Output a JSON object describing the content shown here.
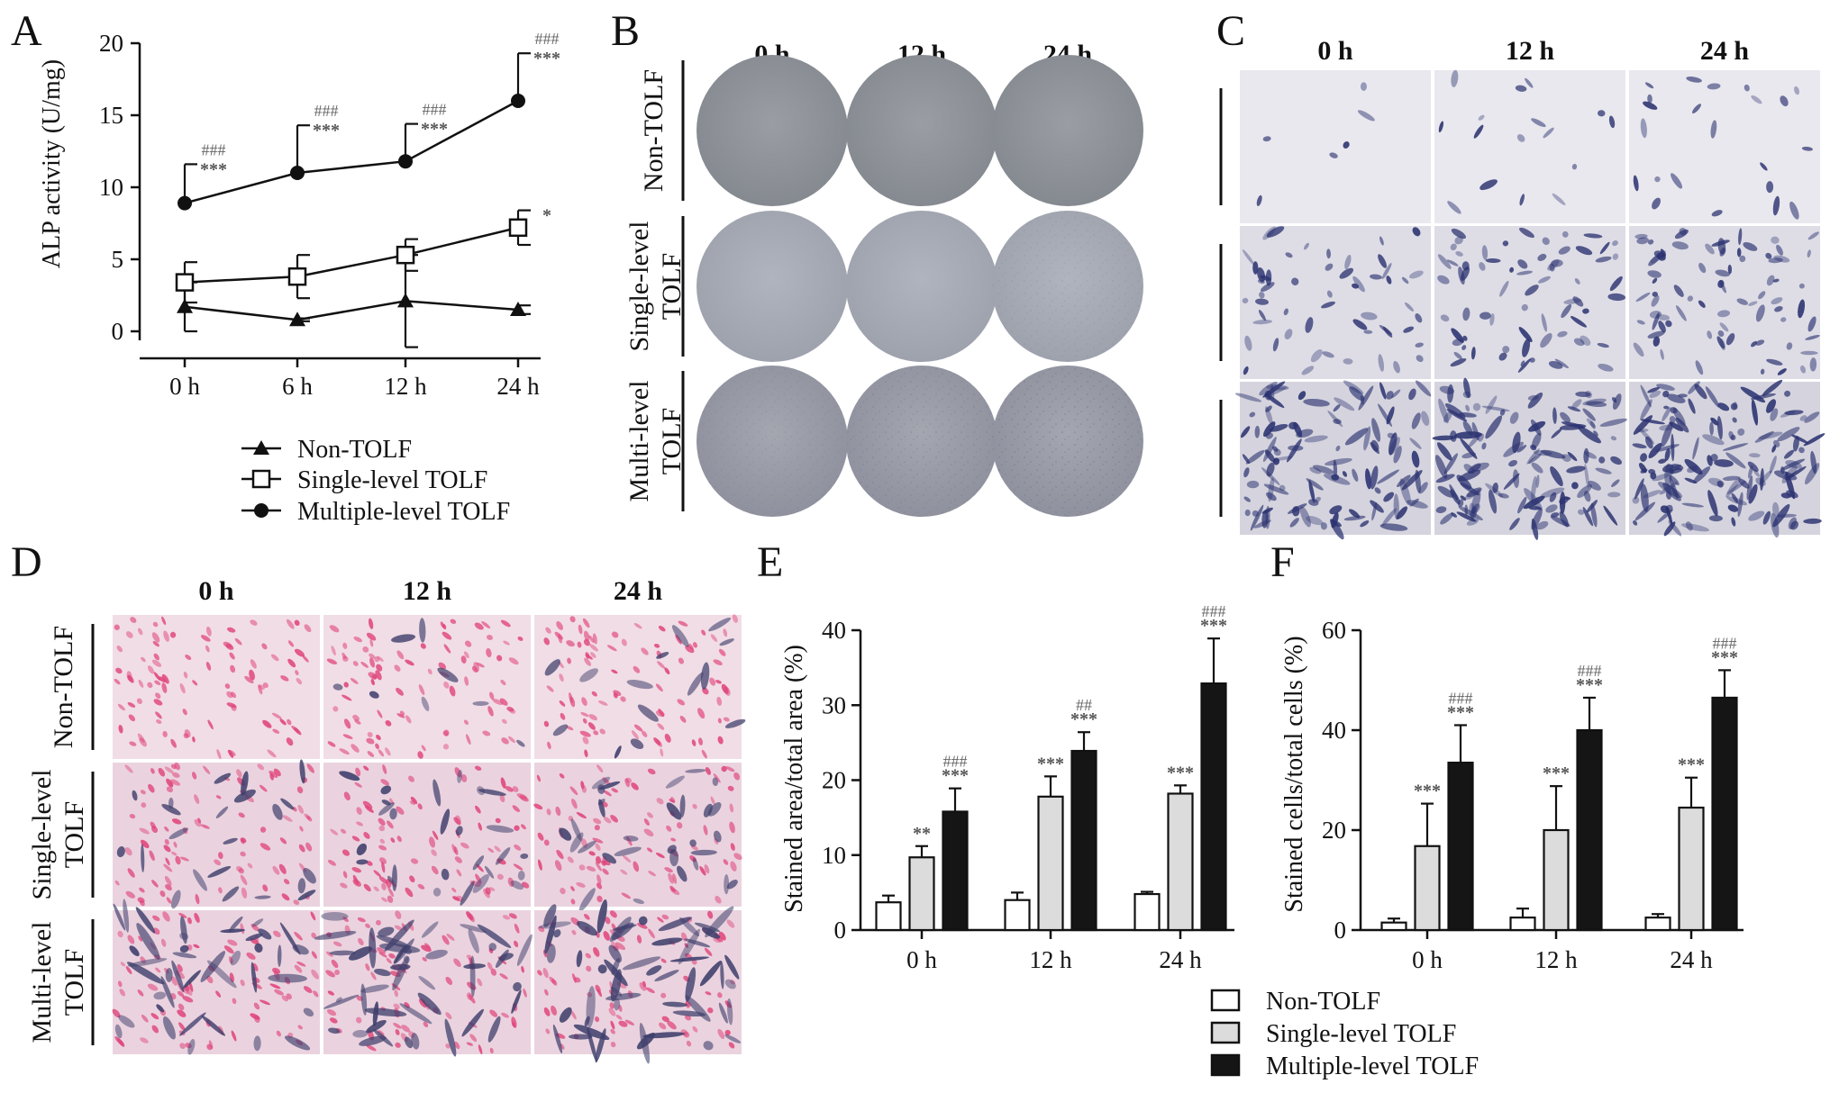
{
  "panels": {
    "A": {
      "label": "A",
      "chart_data": {
        "type": "line",
        "ylabel": "ALP activity (U/mg)",
        "ylim": [
          0,
          20
        ],
        "yticks": [
          "0",
          "5",
          "10",
          "15",
          "20"
        ],
        "categories": [
          "0 h",
          "6 h",
          "12 h",
          "24 h"
        ],
        "series": [
          {
            "name": "Non-TOLF",
            "marker": "triangle",
            "values": [
              1.7,
              0.8,
              2.1,
              1.5
            ],
            "errors": [
              1.7,
              0.1,
              3.2,
              0.3
            ],
            "err_dir": "both"
          },
          {
            "name": "Single-level TOLF",
            "marker": "open-square",
            "values": [
              3.4,
              3.8,
              5.3,
              7.2
            ],
            "errors": [
              1.4,
              1.5,
              1.1,
              1.2
            ],
            "err_dir": "both"
          },
          {
            "name": "Multiple-level TOLF",
            "marker": "filled-circle",
            "values": [
              8.9,
              11.0,
              11.8,
              16.0
            ],
            "errors": [
              2.7,
              3.3,
              2.6,
              3.3
            ],
            "err_dir": "up"
          }
        ],
        "annotations": [
          {
            "hash": "###",
            "stars": "***",
            "x": 0,
            "y": 11.6
          },
          {
            "hash": "###",
            "stars": "***",
            "x": 1,
            "y": 14.3
          },
          {
            "hash": "###",
            "stars": "***",
            "x": 2,
            "y": 14.4
          },
          {
            "hash": "###",
            "stars": "***",
            "x": 3,
            "y": 19.3
          },
          {
            "hash": "",
            "stars": "*",
            "x": 3,
            "y": 8.4
          }
        ],
        "legend_position": "bottom"
      }
    },
    "B": {
      "label": "B",
      "columns": [
        "0 h",
        "12 h",
        "24 h"
      ],
      "rows": [
        [
          "Non-TOLF"
        ],
        [
          "Single-level",
          "TOLF"
        ],
        [
          "Multi-level",
          "TOLF"
        ]
      ]
    },
    "C": {
      "label": "C",
      "columns": [
        "0 h",
        "12 h",
        "24 h"
      ]
    },
    "D": {
      "label": "D",
      "columns": [
        "0 h",
        "12 h",
        "24 h"
      ],
      "rows": [
        [
          "Non-TOLF"
        ],
        [
          "Single-level",
          "TOLF"
        ],
        [
          "Multi-level",
          "TOLF"
        ]
      ]
    },
    "E": {
      "label": "E",
      "chart_data": {
        "type": "bar",
        "ylabel": "Stained area/total area (%)",
        "ylim": [
          0,
          40
        ],
        "yticks": [
          "0",
          "10",
          "20",
          "30",
          "40"
        ],
        "categories": [
          "0 h",
          "12 h",
          "24 h"
        ],
        "series": [
          {
            "name": "Non-TOLF",
            "values": [
              3.7,
              4.0,
              4.8
            ],
            "errors": [
              0.9,
              1.0,
              0.3
            ]
          },
          {
            "name": "Single-level TOLF",
            "values": [
              9.7,
              17.8,
              18.2
            ],
            "errors": [
              1.5,
              2.7,
              1.1
            ]
          },
          {
            "name": "Multiple-level TOLF",
            "values": [
              15.8,
              23.9,
              32.9
            ],
            "errors": [
              3.1,
              2.5,
              6.0
            ]
          }
        ],
        "annotations": [
          {
            "group": 0,
            "series": 1,
            "stars": "**",
            "hash": ""
          },
          {
            "group": 0,
            "series": 2,
            "stars": "***",
            "hash": "###"
          },
          {
            "group": 1,
            "series": 1,
            "stars": "***",
            "hash": ""
          },
          {
            "group": 1,
            "series": 2,
            "stars": "***",
            "hash": "##"
          },
          {
            "group": 2,
            "series": 1,
            "stars": "***",
            "hash": ""
          },
          {
            "group": 2,
            "series": 2,
            "stars": "***",
            "hash": "###"
          }
        ]
      }
    },
    "F": {
      "label": "F",
      "chart_data": {
        "type": "bar",
        "ylabel": "Stained cells/total cells (%)",
        "ylim": [
          0,
          60
        ],
        "yticks": [
          "0",
          "20",
          "40",
          "60"
        ],
        "categories": [
          "0 h",
          "12 h",
          "24 h"
        ],
        "series": [
          {
            "name": "Non-TOLF",
            "values": [
              1.5,
              2.5,
              2.5
            ],
            "errors": [
              0.8,
              1.8,
              0.7
            ]
          },
          {
            "name": "Single-level TOLF",
            "values": [
              16.8,
              20.0,
              24.5
            ],
            "errors": [
              8.5,
              8.8,
              6.0
            ]
          },
          {
            "name": "Multiple-level TOLF",
            "values": [
              33.5,
              40.0,
              46.5
            ],
            "errors": [
              7.5,
              6.5,
              5.5
            ]
          }
        ],
        "annotations": [
          {
            "group": 0,
            "series": 1,
            "stars": "***",
            "hash": ""
          },
          {
            "group": 0,
            "series": 2,
            "stars": "***",
            "hash": "###"
          },
          {
            "group": 1,
            "series": 1,
            "stars": "***",
            "hash": ""
          },
          {
            "group": 1,
            "series": 2,
            "stars": "***",
            "hash": "###"
          },
          {
            "group": 2,
            "series": 1,
            "stars": "***",
            "hash": ""
          },
          {
            "group": 2,
            "series": 2,
            "stars": "***",
            "hash": "###"
          }
        ]
      }
    }
  },
  "bar_legend": [
    "Non-TOLF",
    "Single-level TOLF",
    "Multiple-level TOLF"
  ],
  "colors": {
    "bar_fills": [
      "#ffffff",
      "#dcdcdc",
      "#151515"
    ],
    "plate_non": "#8d9197",
    "plate_single": "#a7abb5",
    "plate_multi": "#9d9fa9",
    "stain_blue": "#2b3270",
    "stain_pink": "#e0457a"
  }
}
